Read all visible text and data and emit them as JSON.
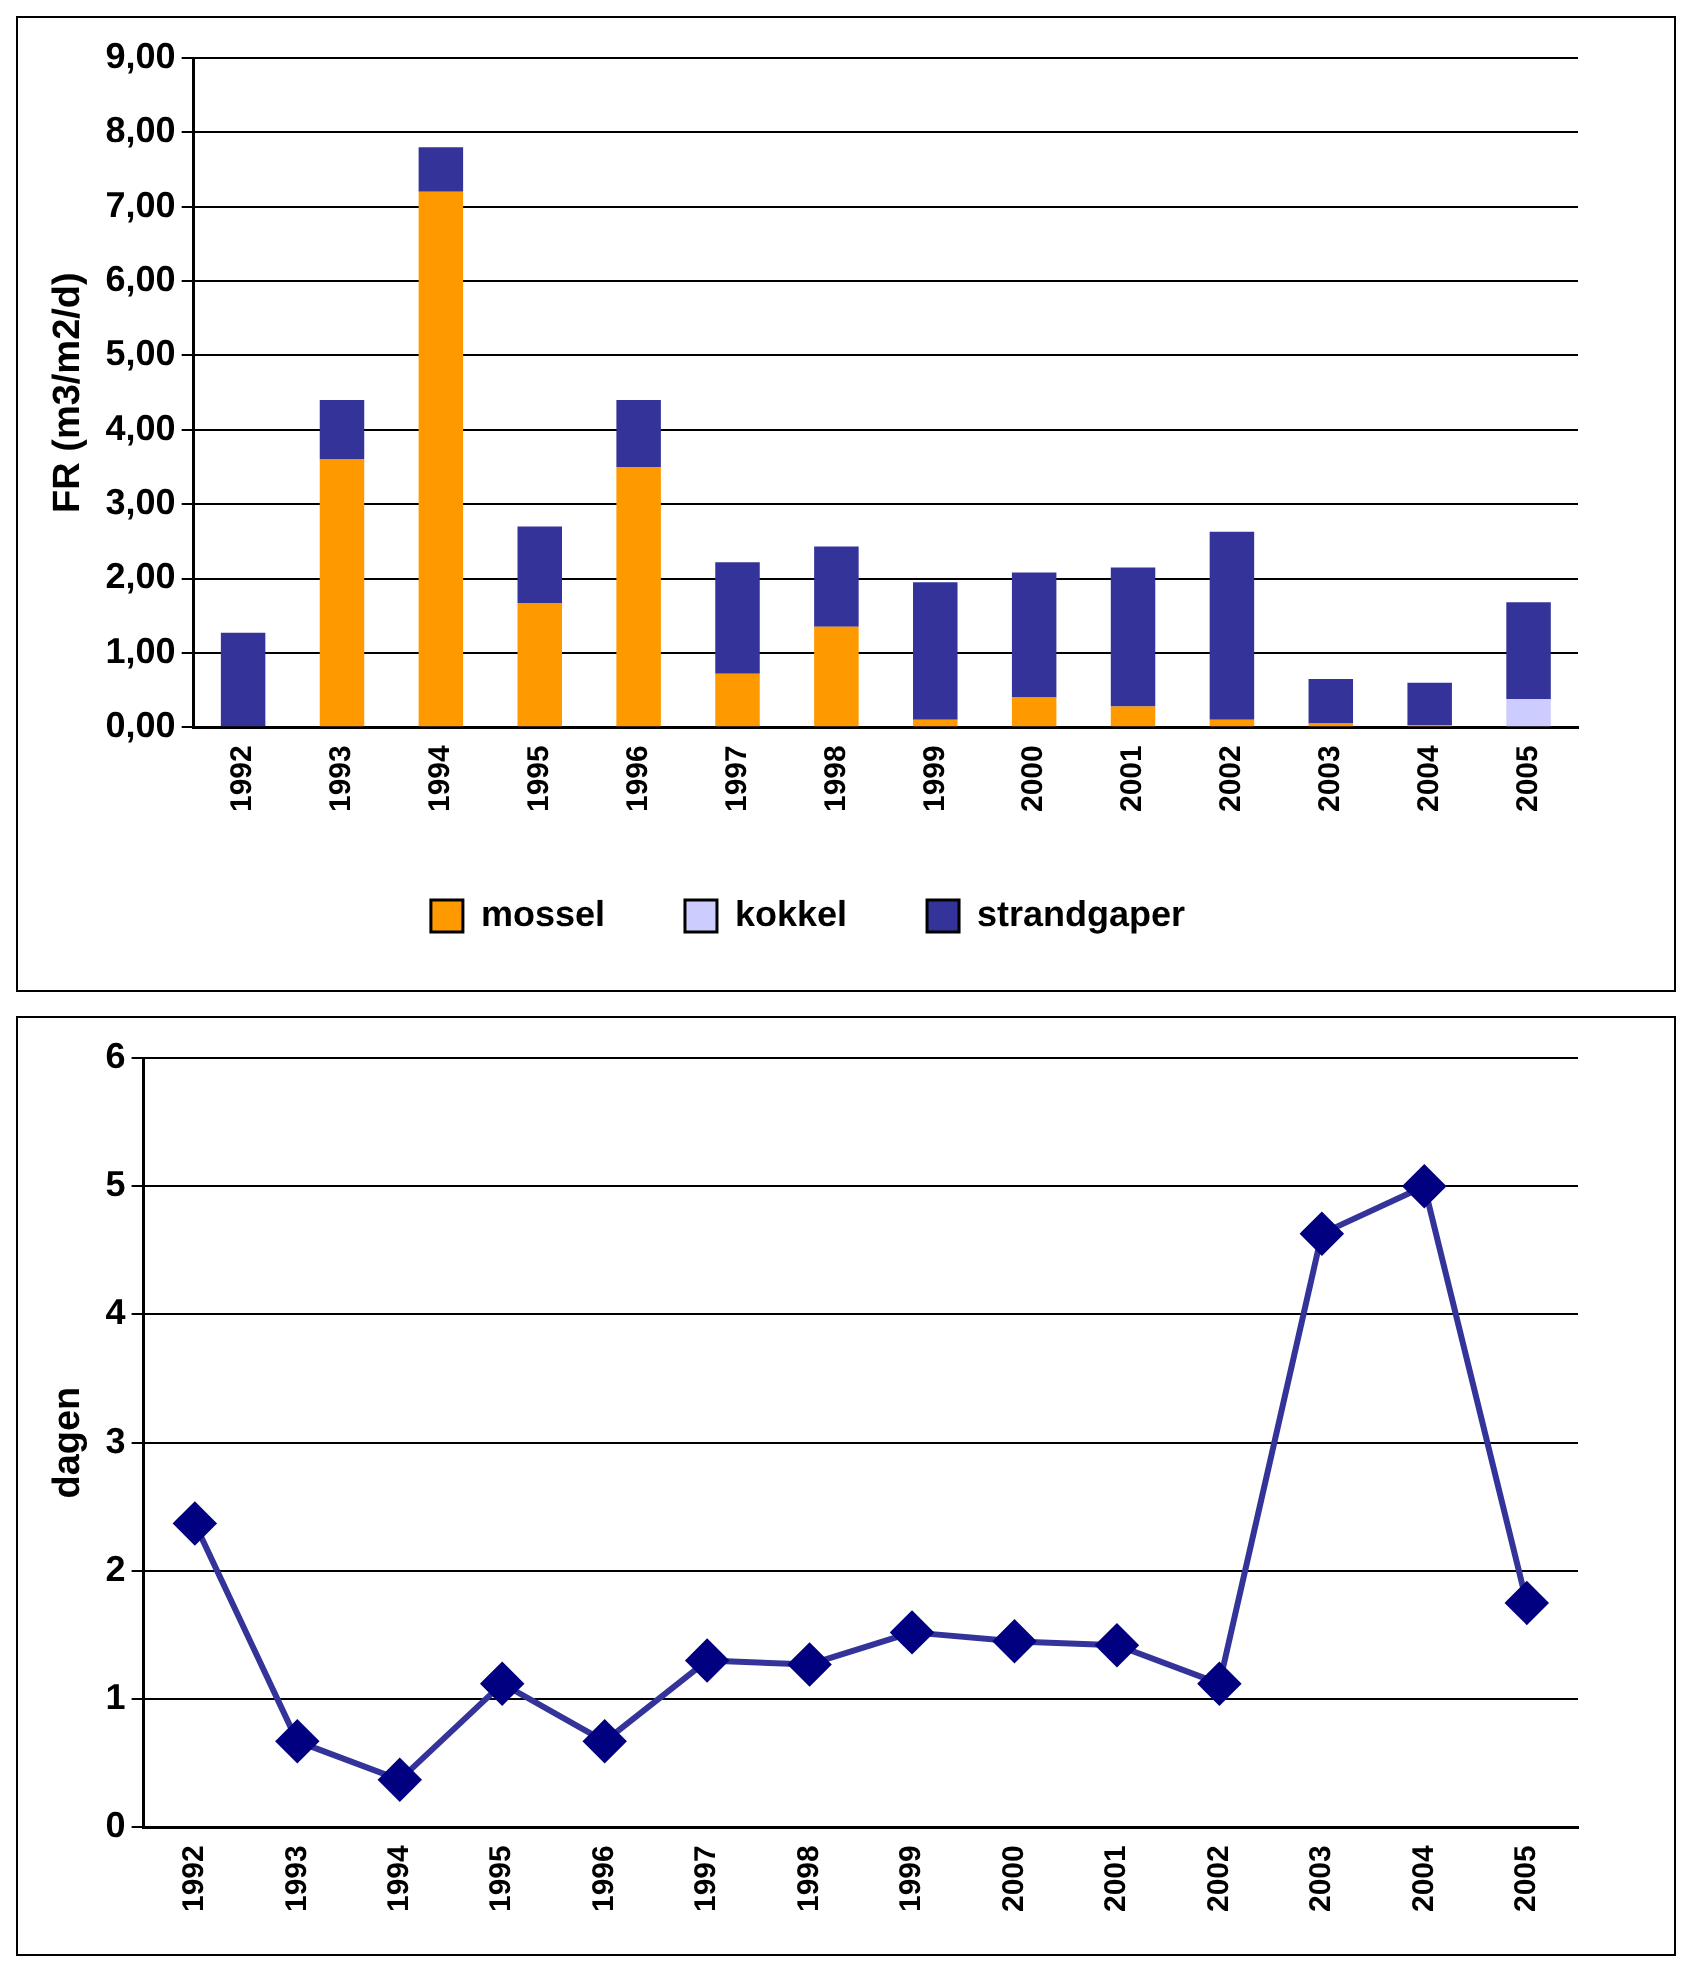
{
  "chart_data": [
    {
      "type": "bar",
      "stacked": true,
      "ylabel": "FR (m3/m2/d)",
      "categories": [
        "1992",
        "1993",
        "1994",
        "1995",
        "1996",
        "1997",
        "1998",
        "1999",
        "2000",
        "2001",
        "2002",
        "2003",
        "2004",
        "2005"
      ],
      "series": [
        {
          "name": "mossel",
          "color": "#ff9900",
          "values": [
            0,
            3.6,
            7.2,
            1.67,
            3.5,
            0.72,
            1.35,
            0.1,
            0.4,
            0.28,
            0.1,
            0.05,
            0.03,
            0
          ]
        },
        {
          "name": "kokkel",
          "color": "#ccccff",
          "values": [
            0,
            0,
            0,
            0,
            0,
            0,
            0,
            0,
            0,
            0,
            0,
            0,
            0,
            0.38
          ]
        },
        {
          "name": "strandgaper",
          "color": "#333399",
          "values": [
            1.27,
            0.8,
            0.6,
            1.03,
            0.9,
            1.5,
            1.08,
            1.85,
            1.68,
            1.87,
            2.53,
            0.6,
            0.57,
            1.3
          ]
        }
      ],
      "ylim": [
        0,
        9
      ],
      "yticks": [
        {
          "value": 0,
          "label": "0,00"
        },
        {
          "value": 1,
          "label": "1,00"
        },
        {
          "value": 2,
          "label": "2,00"
        },
        {
          "value": 3,
          "label": "3,00"
        },
        {
          "value": 4,
          "label": "4,00"
        },
        {
          "value": 5,
          "label": "5,00"
        },
        {
          "value": 6,
          "label": "6,00"
        },
        {
          "value": 7,
          "label": "7,00"
        },
        {
          "value": 8,
          "label": "8,00"
        },
        {
          "value": 9,
          "label": "9,00"
        }
      ],
      "grid": "y",
      "legend": "bottom"
    },
    {
      "type": "line",
      "ylabel": "dagen",
      "categories": [
        "1992",
        "1993",
        "1994",
        "1995",
        "1996",
        "1997",
        "1998",
        "1999",
        "2000",
        "2001",
        "2002",
        "2003",
        "2004",
        "2005"
      ],
      "series": [
        {
          "color": "#333399",
          "values": [
            2.37,
            0.67,
            0.37,
            1.12,
            0.67,
            1.3,
            1.27,
            1.52,
            1.45,
            1.42,
            1.12,
            4.63,
            5.0,
            1.75
          ]
        }
      ],
      "ylim": [
        0,
        6
      ],
      "yticks": [
        0,
        1,
        2,
        3,
        4,
        5,
        6
      ],
      "grid": "y",
      "marker": "diamond",
      "line_style": "solid"
    }
  ]
}
